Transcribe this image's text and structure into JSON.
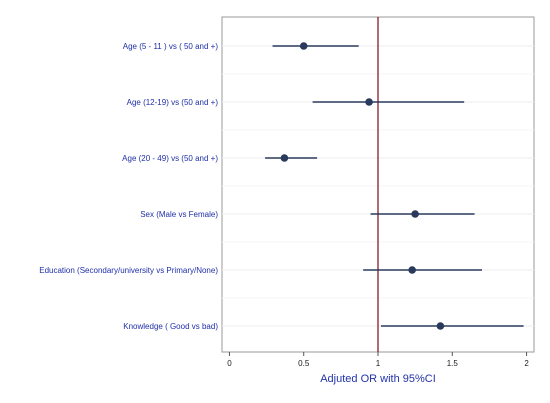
{
  "chart_data": {
    "type": "forest",
    "xlabel": "Adjuted OR with 95%CI",
    "xlim": [
      -0.05,
      2.05
    ],
    "xticks": [
      0,
      0.5,
      1,
      1.5,
      2
    ],
    "xtick_labels": [
      "0",
      "0.5",
      "1",
      "1.5",
      "2"
    ],
    "reference_line": 1,
    "grid": true,
    "colors": {
      "point": "#2a3a5c",
      "ci": "#2a3a5c",
      "reference": "#8b1a2b",
      "labels": "#1f2fa8"
    },
    "rows": [
      {
        "label": "Age (5 - 11 ) vs ( 50 and +)",
        "or": 0.5,
        "lower": 0.29,
        "upper": 0.87
      },
      {
        "label": "Age (12-19) vs (50 and +)",
        "or": 0.94,
        "lower": 0.56,
        "upper": 1.58
      },
      {
        "label": "Age (20 - 49) vs (50 and +)",
        "or": 0.37,
        "lower": 0.24,
        "upper": 0.59
      },
      {
        "label": "Sex (Male vs Female)",
        "or": 1.25,
        "lower": 0.95,
        "upper": 1.65
      },
      {
        "label": "Education (Secondary/university vs Primary/None)",
        "or": 1.23,
        "lower": 0.9,
        "upper": 1.7
      },
      {
        "label": "Knowledge ( Good vs bad)",
        "or": 1.42,
        "lower": 1.02,
        "upper": 1.98
      }
    ]
  }
}
